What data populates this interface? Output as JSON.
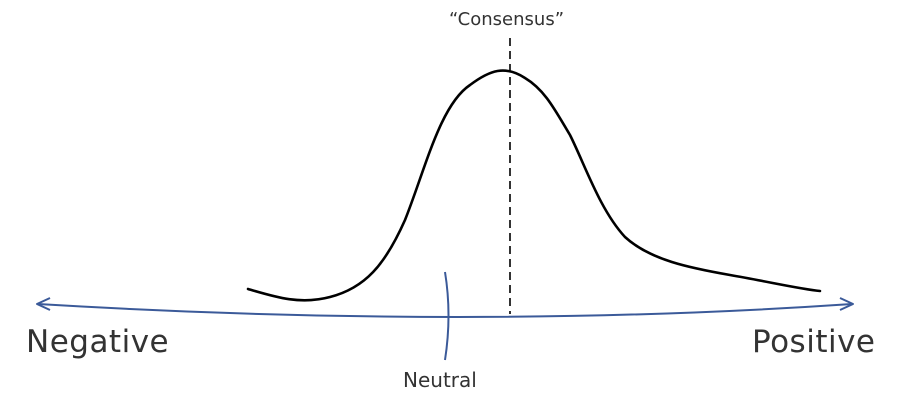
{
  "labels": {
    "consensus": "“Consensus”",
    "neutral": "Neutral",
    "negative": "Negative",
    "positive": "Positive"
  },
  "colors": {
    "axis": "#3b5a99",
    "curve": "#000000",
    "text": "#333333"
  }
}
